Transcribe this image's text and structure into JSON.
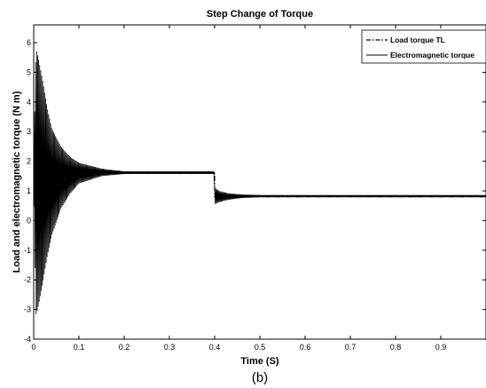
{
  "chart_data": {
    "type": "line",
    "title": "Step Change of Torque",
    "xlabel": "Time (S)",
    "ylabel": "Load and electromagnetic torque (N m)",
    "xlim": [
      0,
      1
    ],
    "ylim": [
      -4,
      6.6
    ],
    "xticks": [
      "0",
      "0.1",
      "0.2",
      "0.3",
      "0.4",
      "0.5",
      "0.6",
      "0.7",
      "0.8",
      "0.9"
    ],
    "xtick_values": [
      0,
      0.1,
      0.2,
      0.3,
      0.4,
      0.5,
      0.6,
      0.7,
      0.8,
      0.9
    ],
    "yticks": [
      "-4",
      "-3",
      "-2",
      "-1",
      "0",
      "1",
      "2",
      "3",
      "4",
      "5",
      "6"
    ],
    "ytick_values": [
      -4,
      -3,
      -2,
      -1,
      0,
      1,
      2,
      3,
      4,
      5,
      6
    ],
    "grid": false,
    "legend_position": "top-right",
    "series": [
      {
        "name": "Load torque TL",
        "style": "dash-dot",
        "color": "#000000",
        "x": [
          0,
          0.4,
          0.4,
          1.0
        ],
        "y": [
          1.6,
          1.6,
          0.8,
          0.8
        ]
      },
      {
        "name": "Electromagnetic torque",
        "style": "solid",
        "color": "#000000",
        "envelope": {
          "x": [
            0,
            0.005,
            0.01,
            0.02,
            0.03,
            0.04,
            0.06,
            0.08,
            0.1,
            0.15,
            0.2,
            0.3,
            0.399,
            0.4,
            0.41,
            0.43,
            0.46,
            0.5,
            0.6,
            0.8,
            1.0
          ],
          "upper": [
            2.0,
            5.8,
            5.5,
            4.7,
            3.8,
            3.1,
            2.5,
            2.15,
            1.95,
            1.75,
            1.66,
            1.66,
            1.66,
            1.1,
            1.0,
            0.92,
            0.88,
            0.86,
            0.86,
            0.86,
            0.86
          ],
          "lower": [
            1.5,
            -3.2,
            -2.9,
            -2.1,
            -1.2,
            -0.5,
            0.4,
            0.9,
            1.25,
            1.5,
            1.57,
            1.57,
            1.57,
            0.55,
            0.62,
            0.7,
            0.76,
            0.79,
            0.79,
            0.79,
            0.79
          ]
        }
      }
    ]
  },
  "caption": "(b)"
}
